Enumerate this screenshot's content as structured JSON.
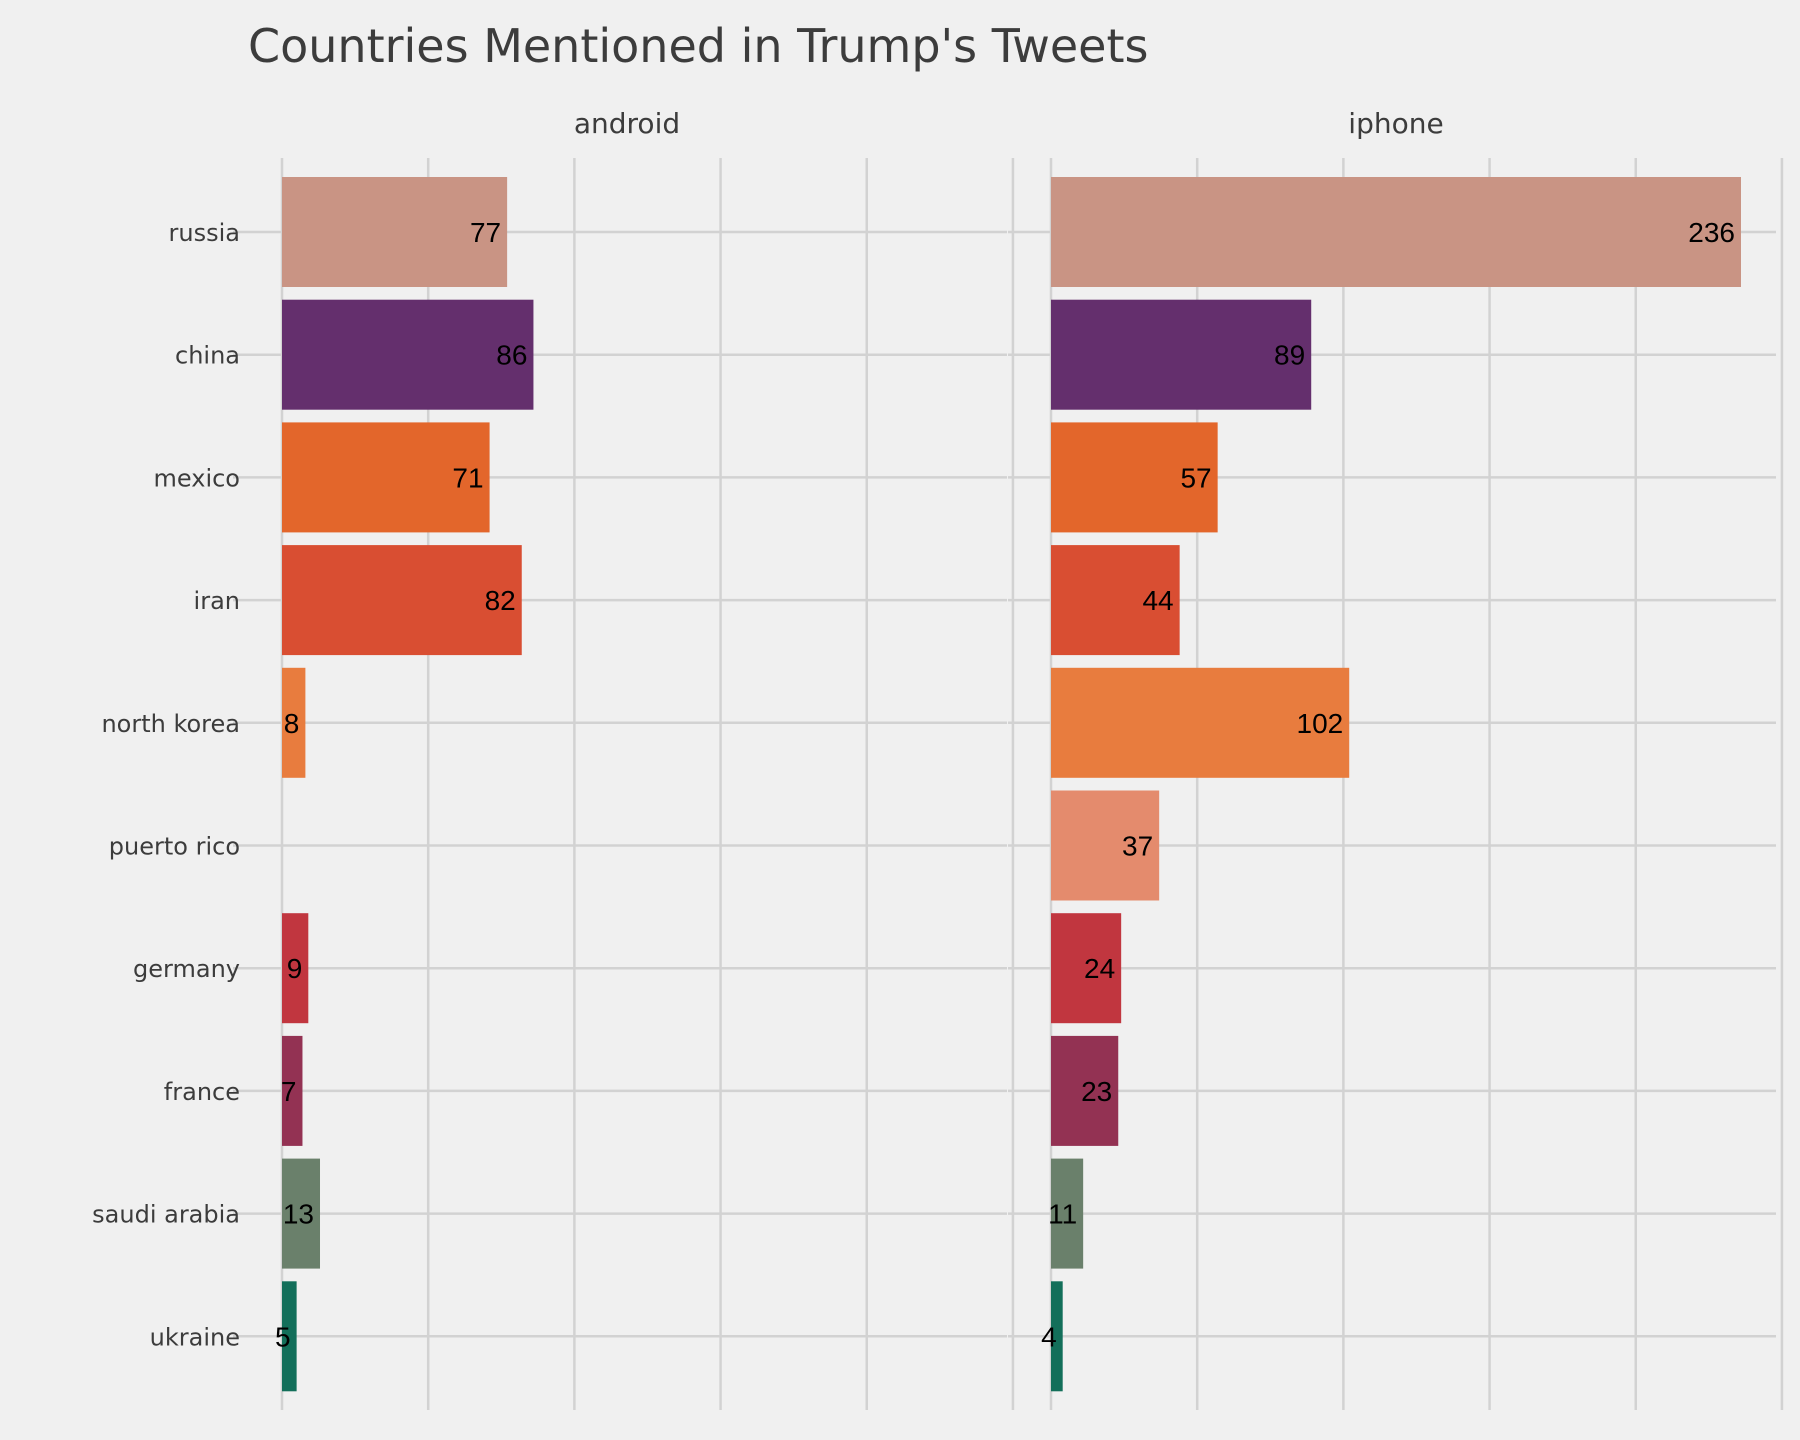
{
  "chart_data": {
    "type": "bar",
    "orientation": "horizontal",
    "title": "Countries Mentioned in Trump's Tweets",
    "categories": [
      "russia",
      "china",
      "mexico",
      "iran",
      "north korea",
      "puerto rico",
      "germany",
      "france",
      "saudi arabia",
      "ukraine"
    ],
    "colors": {
      "russia": "#c99484",
      "china": "#642f6d",
      "mexico": "#e3662b",
      "iran": "#d94e32",
      "north korea": "#e87c3e",
      "puerto rico": "#e48b6d",
      "germany": "#c1363f",
      "france": "#933253",
      "saudi arabia": "#6a806b",
      "ukraine": "#136f5a"
    },
    "series": [
      {
        "name": "android",
        "values": [
          77,
          86,
          71,
          82,
          8,
          null,
          9,
          7,
          13,
          5
        ]
      },
      {
        "name": "iphone",
        "values": [
          236,
          89,
          57,
          44,
          102,
          37,
          24,
          23,
          11,
          4
        ]
      }
    ],
    "xlim": [
      0,
      250
    ],
    "grid": true,
    "legend": "none"
  }
}
